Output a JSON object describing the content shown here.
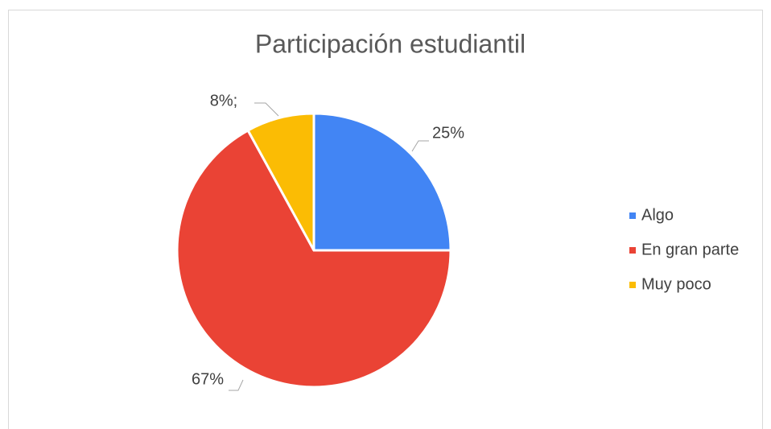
{
  "chart_data": {
    "type": "pie",
    "title": "Participación estudiantil",
    "categories": [
      "Algo",
      "En gran parte",
      "Muy poco"
    ],
    "values": [
      25,
      67,
      8
    ],
    "value_labels": [
      "25%",
      "67%",
      "8%;"
    ],
    "colors": [
      "#4285f4",
      "#ea4335",
      "#fbbc04"
    ],
    "legend": "right"
  }
}
